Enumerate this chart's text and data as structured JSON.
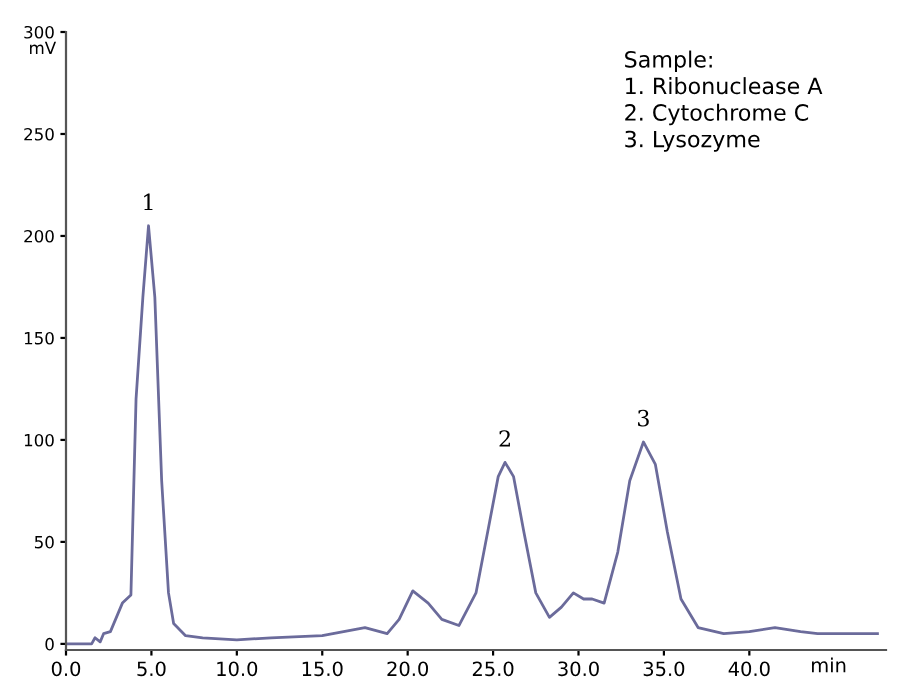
{
  "chart_data": {
    "type": "line",
    "xlabel": "min",
    "ylabel": "mV",
    "x": [
      0,
      1.5,
      1.7,
      2.0,
      2.2,
      2.6,
      3.3,
      3.8,
      4.1,
      4.5,
      4.83,
      5.2,
      5.6,
      6.0,
      6.3,
      7,
      8,
      10,
      12,
      15,
      17.5,
      18.8,
      19.5,
      20.3,
      21.2,
      22,
      23,
      24,
      24.8,
      25.3,
      25.7,
      26.2,
      26.8,
      27.5,
      28.3,
      29,
      29.7,
      30.3,
      30.8,
      31.5,
      32.3,
      33,
      33.8,
      34.5,
      35.2,
      36,
      37,
      38.5,
      40,
      41.5,
      43,
      44,
      47.5
    ],
    "series": [
      {
        "color": "#6b6b9b",
        "values": [
          0,
          0,
          3,
          1,
          5,
          6,
          20,
          24,
          120,
          170,
          205,
          170,
          80,
          25,
          10,
          4,
          3,
          2,
          3,
          4,
          8,
          5,
          12,
          26,
          20,
          12,
          9,
          25,
          60,
          82,
          89,
          82,
          55,
          25,
          13,
          18,
          25,
          22,
          22,
          20,
          45,
          80,
          99,
          88,
          55,
          22,
          8,
          5,
          6,
          8,
          6,
          5,
          5
        ]
      }
    ],
    "xlim": [
      0,
      48
    ],
    "ylim": [
      -3,
      300
    ],
    "xticks": [
      {
        "value": 0,
        "label": "0.0"
      },
      {
        "value": 5,
        "label": "5.0"
      },
      {
        "value": 10,
        "label": "10.0"
      },
      {
        "value": 15,
        "label": "15.0"
      },
      {
        "value": 20,
        "label": "20.0"
      },
      {
        "value": 25,
        "label": "25.0"
      },
      {
        "value": 30,
        "label": "30.0"
      },
      {
        "value": 35,
        "label": "35.0"
      },
      {
        "value": 40,
        "label": "40.0"
      }
    ],
    "yticks": [
      0,
      50,
      100,
      150,
      200,
      250,
      300
    ],
    "annotations": [
      {
        "text": "1",
        "x": 4.83,
        "y": 205
      },
      {
        "text": "2",
        "x": 25.7,
        "y": 89
      },
      {
        "text": "3",
        "x": 33.8,
        "y": 99
      },
      "Sample:\n1. Ribonuclease A\n2. Cytochrome C\n3. Lysozyme"
    ],
    "grid": false,
    "legend": false
  }
}
